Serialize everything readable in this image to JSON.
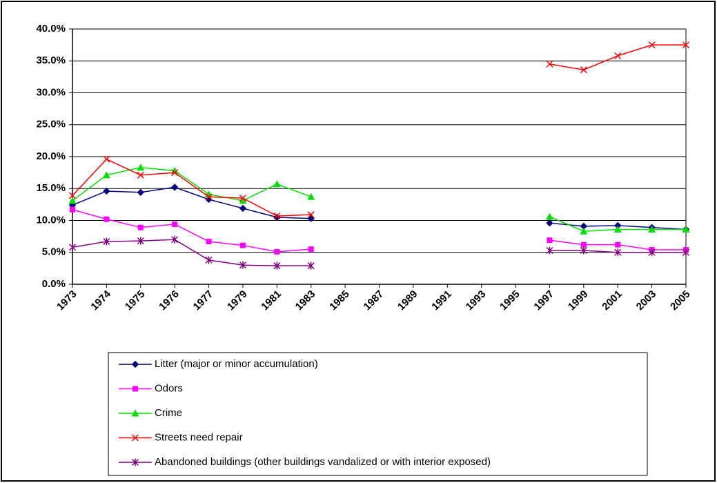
{
  "chart_data": {
    "type": "line",
    "categories": [
      "1973",
      "1974",
      "1975",
      "1976",
      "1977",
      "1979",
      "1981",
      "1983",
      "1985",
      "1987",
      "1989",
      "1991",
      "1993",
      "1995",
      "1997",
      "1999",
      "2001",
      "2003",
      "2005"
    ],
    "series": [
      {
        "name": "Litter (major or minor accumulation)",
        "color": "#000080",
        "marker": "diamond",
        "values": [
          12.4,
          14.6,
          14.4,
          15.2,
          13.3,
          11.9,
          10.5,
          10.3,
          null,
          null,
          null,
          null,
          null,
          null,
          9.6,
          9.1,
          9.2,
          8.9,
          8.6
        ]
      },
      {
        "name": "Odors",
        "color": "#ff00ff",
        "marker": "square",
        "values": [
          11.7,
          10.2,
          8.9,
          9.4,
          6.7,
          6.1,
          5.1,
          5.5,
          null,
          null,
          null,
          null,
          null,
          null,
          6.9,
          6.2,
          6.2,
          5.4,
          5.4
        ]
      },
      {
        "name": "Crime",
        "color": "#00e000",
        "marker": "triangle",
        "values": [
          13.1,
          17.1,
          18.3,
          17.8,
          14.1,
          13.1,
          15.7,
          13.7,
          null,
          null,
          null,
          null,
          null,
          null,
          10.6,
          8.3,
          8.6,
          8.6,
          8.6
        ]
      },
      {
        "name": "Streets need repair",
        "color": "#ff0000",
        "marker": "x",
        "values": [
          13.9,
          19.6,
          17.1,
          17.5,
          13.7,
          13.5,
          10.7,
          10.9,
          null,
          null,
          null,
          null,
          null,
          null,
          34.5,
          33.6,
          35.8,
          37.5,
          37.5
        ]
      },
      {
        "name": "Abandoned buildings (other buildings vandalized or with interior exposed)",
        "color": "#800080",
        "marker": "star",
        "values": [
          5.8,
          6.7,
          6.8,
          7.0,
          3.8,
          3.0,
          2.9,
          2.9,
          null,
          null,
          null,
          null,
          null,
          null,
          5.3,
          5.3,
          5.0,
          5.0,
          5.0
        ]
      }
    ],
    "ylim": [
      0,
      40
    ],
    "yticks": [
      {
        "value": 0,
        "label": "0.0%"
      },
      {
        "value": 5,
        "label": "5.0%"
      },
      {
        "value": 10,
        "label": "10.0%"
      },
      {
        "value": 15,
        "label": "15.0%"
      },
      {
        "value": 20,
        "label": "20.0%"
      },
      {
        "value": 25,
        "label": "25.0%"
      },
      {
        "value": 30,
        "label": "30.0%"
      },
      {
        "value": 35,
        "label": "35.0%"
      },
      {
        "value": 40,
        "label": "40.0%"
      }
    ],
    "grid": true
  }
}
